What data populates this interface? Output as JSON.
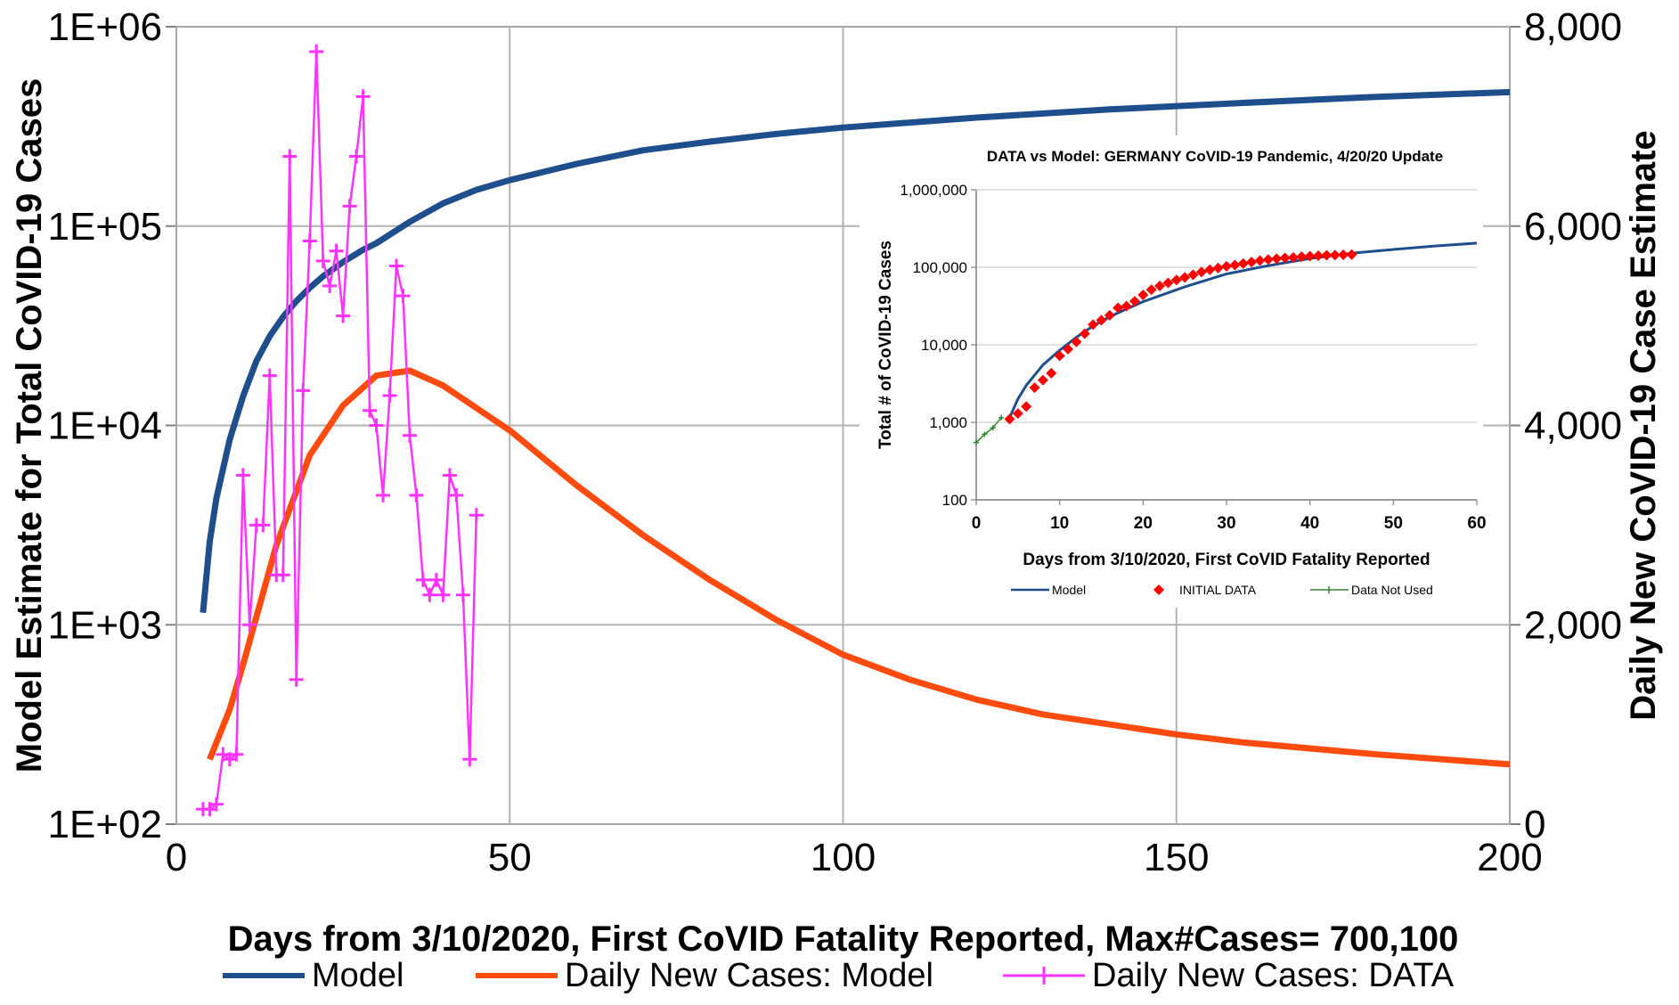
{
  "chart_data": [
    {
      "type": "line",
      "xlabel": "Days from 3/10/2020, First CoVID Fatality Reported, Max#Cases= 700,100",
      "ylabel_left": "Model Estimate for Total CoVID-19 Cases",
      "ylabel_right": "Daily New CoVID-19 Case Estimate",
      "xlim": [
        0,
        200
      ],
      "x_ticks": [
        "0",
        "50",
        "100",
        "150",
        "200"
      ],
      "ylim_left": [
        100,
        1000000
      ],
      "y_scale_left": "log",
      "y_ticks_left": [
        "1E+02",
        "1E+03",
        "1E+04",
        "1E+05",
        "1E+06"
      ],
      "ylim_right": [
        0,
        8000
      ],
      "y_ticks_right": [
        "0",
        "2,000",
        "4,000",
        "6,000",
        "8,000"
      ],
      "grid": true,
      "legend_position": "bottom",
      "series": [
        {
          "name": "Model",
          "axis": "left",
          "color": "#1f4e8c",
          "x": [
            4,
            5,
            6,
            8,
            10,
            12,
            14,
            16,
            18,
            20,
            22,
            25,
            28,
            30,
            35,
            40,
            45,
            50,
            60,
            70,
            80,
            90,
            100,
            120,
            140,
            160,
            180,
            200
          ],
          "y": [
            1150,
            2600,
            4300,
            8500,
            14000,
            21000,
            28000,
            35000,
            42000,
            49000,
            56000,
            66000,
            76000,
            82000,
            105000,
            130000,
            152000,
            170000,
            205000,
            240000,
            265000,
            290000,
            312000,
            350000,
            385000,
            415000,
            445000,
            470000
          ]
        },
        {
          "name": "Daily New Cases: Model",
          "axis": "right",
          "color": "#ff4b0d",
          "x": [
            5,
            8,
            10,
            15,
            20,
            25,
            30,
            35,
            40,
            50,
            60,
            70,
            80,
            90,
            100,
            110,
            120,
            130,
            140,
            150,
            160,
            170,
            180,
            190,
            200
          ],
          "y": [
            650,
            1150,
            1600,
            2800,
            3700,
            4200,
            4500,
            4550,
            4400,
            3950,
            3400,
            2900,
            2450,
            2050,
            1700,
            1450,
            1250,
            1100,
            1000,
            900,
            820,
            760,
            700,
            650,
            600
          ]
        },
        {
          "name": "Daily New Cases: DATA",
          "axis": "right",
          "color": "#ff33ff",
          "x": [
            4,
            5,
            6,
            7,
            8,
            9,
            10,
            11,
            12,
            13,
            14,
            15,
            16,
            17,
            18,
            19,
            20,
            21,
            22,
            23,
            24,
            25,
            26,
            27,
            28,
            29,
            30,
            31,
            32,
            33,
            34,
            35,
            36,
            37,
            38,
            39,
            40,
            41,
            42,
            43,
            44,
            45
          ],
          "y": [
            150,
            150,
            200,
            700,
            650,
            700,
            3500,
            2000,
            3000,
            3000,
            4500,
            2500,
            2500,
            6700,
            1450,
            4350,
            5850,
            7750,
            5650,
            5400,
            5750,
            5100,
            6200,
            6700,
            7300,
            4150,
            4000,
            3300,
            4300,
            5600,
            5300,
            3900,
            3300,
            2450,
            2300,
            2450,
            2300,
            3500,
            3300,
            2300,
            650,
            3100
          ]
        }
      ]
    },
    {
      "type": "line",
      "title": "DATA vs Model: GERMANY CoVID-19 Pandemic, 4/20/20 Update",
      "xlabel": "Days from 3/10/2020, First CoVID Fatality Reported",
      "ylabel": "Total # of CoVID-19 Cases",
      "xlim": [
        0,
        60
      ],
      "x_ticks": [
        "0",
        "10",
        "20",
        "30",
        "40",
        "50",
        "60"
      ],
      "ylim": [
        100,
        1000000
      ],
      "y_scale": "log",
      "y_ticks": [
        "100",
        "1,000",
        "10,000",
        "100,000",
        "1,000,000"
      ],
      "legend_position": "bottom",
      "series": [
        {
          "name": "Model",
          "color": "#1f4e8c",
          "x": [
            4,
            5,
            6,
            8,
            10,
            12,
            14,
            16,
            18,
            20,
            25,
            30,
            35,
            40,
            45,
            50,
            55,
            60
          ],
          "y": [
            1150,
            2000,
            3000,
            5500,
            8500,
            12500,
            17500,
            23000,
            29000,
            36000,
            56000,
            82000,
            105000,
            130000,
            152000,
            170000,
            188000,
            205000
          ]
        },
        {
          "name": "INITIAL DATA",
          "color": "#ff0000",
          "x": [
            4,
            5,
            6,
            7,
            8,
            9,
            10,
            11,
            12,
            13,
            14,
            15,
            16,
            17,
            18,
            19,
            20,
            21,
            22,
            23,
            24,
            25,
            26,
            27,
            28,
            29,
            30,
            31,
            32,
            33,
            34,
            35,
            36,
            37,
            38,
            39,
            40,
            41,
            42,
            43,
            44,
            45
          ],
          "y": [
            1100,
            1300,
            1600,
            2800,
            3500,
            4300,
            7200,
            8800,
            10900,
            13900,
            18200,
            20800,
            24000,
            30000,
            31500,
            36500,
            44000,
            51500,
            57500,
            63000,
            68500,
            74000,
            80000,
            87000,
            93000,
            98000,
            103000,
            107000,
            112000,
            117000,
            122000,
            126000,
            129000,
            132000,
            134000,
            137000,
            139000,
            141000,
            143000,
            144000,
            145000,
            146000
          ]
        },
        {
          "name": "Data Not Used",
          "color": "#2e8b2e",
          "x": [
            0,
            1,
            2,
            3
          ],
          "y": [
            550,
            700,
            850,
            1150
          ]
        }
      ]
    }
  ]
}
